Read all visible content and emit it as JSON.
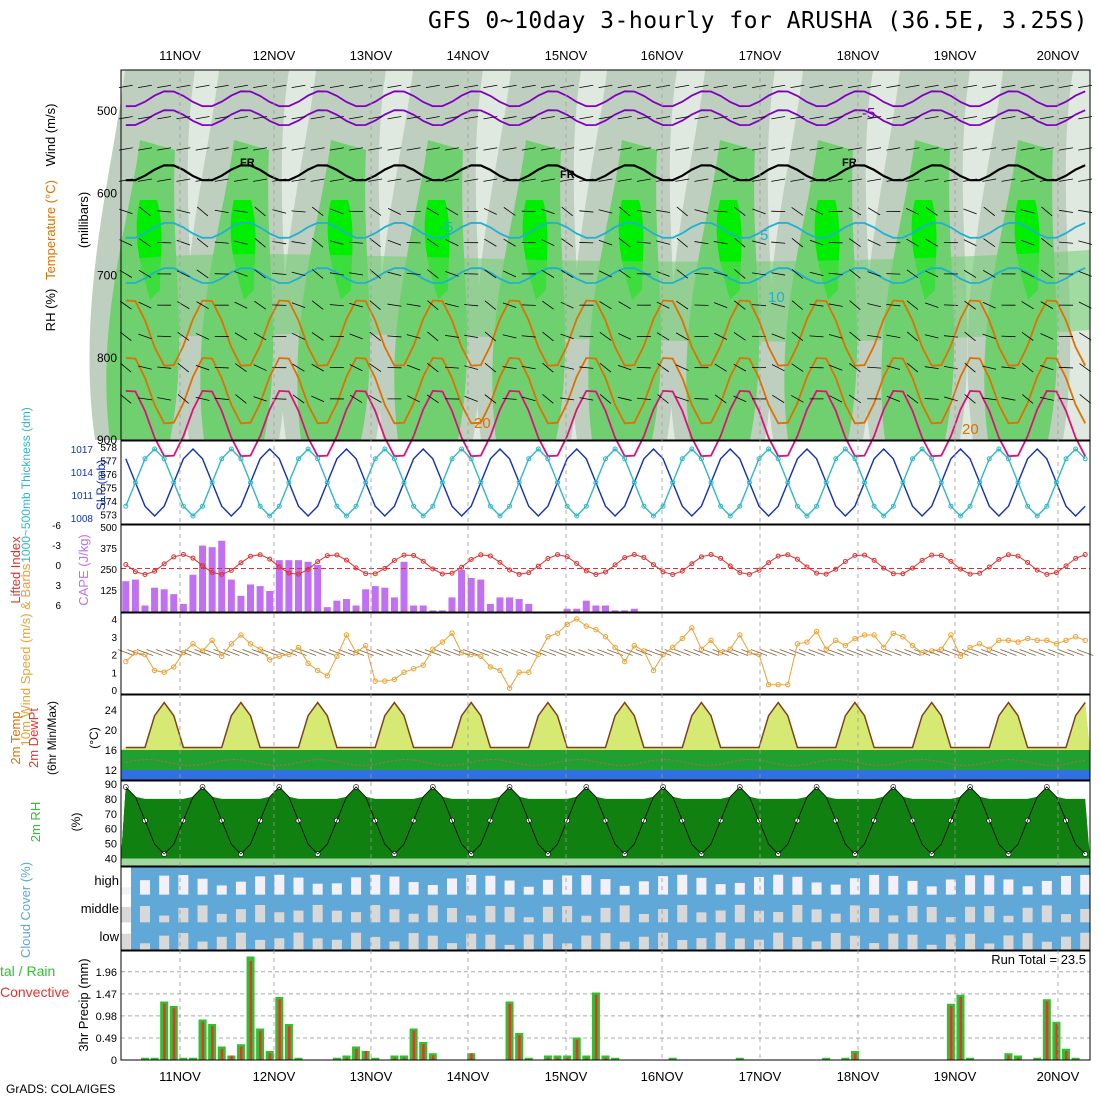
{
  "title": "GFS 0~10day 3-hourly for ARUSHA (36.5E, 3.25S)",
  "credit": "GrADS: COLA/IGES",
  "colors": {
    "rh_low": "#dfe9df",
    "rh_mid": "#bfcfbf",
    "rh_green": "#70d070",
    "rh_bright": "#00ee00",
    "temp_purple": "#8000c0",
    "temp_orange": "#e07000",
    "temp_pink": "#e0107a",
    "temp_cyan": "#20b0d0",
    "slp_blue": "#1030c0",
    "thick_cyan": "#30b8c8",
    "cape_bar": "#c070f0",
    "li_line": "#e03030",
    "wind_orange": "#f0a030",
    "cloud_blue": "#60a8d8",
    "precip_green": "#30c030",
    "precip_red": "#f03030"
  },
  "chart_data": [
    {
      "panel": "upper-air",
      "type": "heatmap",
      "ylabel": "(millibars)",
      "legend_labels": [
        "RH (%)",
        "Temperature (°C)",
        "Wind (m/s)"
      ],
      "y_ticks": [
        500,
        600,
        700,
        800,
        900
      ],
      "ylim": [
        900,
        450
      ],
      "x_tick_labels": [
        "11NOV",
        "12NOV",
        "13NOV",
        "14NOV",
        "15NOV",
        "16NOV",
        "17NOV",
        "18NOV",
        "19NOV",
        "20NOV"
      ],
      "freezing_label": "FR",
      "contour_labels": [
        "-5",
        "5",
        "10",
        "20"
      ],
      "isotherms_hPa": [
        {
          "label": "-5",
          "level": 485,
          "color": "temp_purple"
        },
        {
          "label": "-5",
          "level": 508,
          "color": "temp_purple"
        },
        {
          "label": "FR",
          "level": 575,
          "color": "#000000"
        },
        {
          "label": "5",
          "level": 645,
          "color": "temp_cyan"
        },
        {
          "label": "10",
          "level": 700,
          "color": "temp_cyan"
        },
        {
          "label": "15",
          "level": 770,
          "color": "temp_orange"
        },
        {
          "label": "20",
          "level": 840,
          "color": "temp_orange"
        },
        {
          "label": "25",
          "level": 880,
          "color": "temp_pink"
        }
      ]
    },
    {
      "panel": "slp-thickness",
      "type": "line",
      "ylabel_left": "1000~500mb Thickness (dm)",
      "ylabel_right": "SLP (mb)",
      "left_ticks": [
        "578",
        "577",
        "576",
        "575",
        "574",
        "573"
      ],
      "right_ticks": [
        "1017",
        "1014",
        "1011",
        "1008"
      ],
      "series": [
        {
          "name": "SLP (mb)",
          "color": "slp_blue",
          "period": 8,
          "min": 1008.5,
          "max": 1016.8,
          "phase": 3
        },
        {
          "name": "Thickness (dm)",
          "color": "thick_cyan",
          "period": 8,
          "min": 573.3,
          "max": 577.6,
          "phase": 7
        }
      ]
    },
    {
      "panel": "cape-li",
      "type": "bar",
      "ylabel_left": "Lifted Index",
      "ylabel_right": "CAPE (J/kg)",
      "left_ticks": [
        "-6",
        "-3",
        "0",
        "3",
        "6"
      ],
      "right_ticks": [
        "500",
        "375",
        "250",
        "125"
      ],
      "cape": [
        190,
        200,
        40,
        150,
        140,
        110,
        50,
        230,
        410,
        400,
        440,
        200,
        100,
        170,
        160,
        130,
        320,
        320,
        320,
        310,
        290,
        30,
        70,
        80,
        40,
        140,
        160,
        150,
        90,
        310,
        40,
        40,
        10,
        10,
        90,
        260,
        210,
        200,
        50,
        90,
        90,
        80,
        50,
        0,
        0,
        0,
        20,
        20,
        70,
        40,
        40,
        10,
        10,
        20,
        0,
        0,
        0,
        0,
        0,
        0,
        0,
        0,
        0,
        0,
        0,
        0,
        0,
        0,
        0,
        0,
        0,
        0,
        0,
        0,
        0,
        0,
        0,
        0,
        0,
        0,
        0,
        0,
        0,
        0,
        0,
        0,
        0,
        0,
        0,
        0,
        0,
        0,
        0,
        0,
        0,
        0,
        0,
        0,
        0,
        0,
        0
      ],
      "li_mean": 1
    },
    {
      "panel": "10m-wind",
      "type": "line",
      "ylabel": "10m Wind Speed (m/s) & Barbs",
      "y_ticks": [
        "0",
        "1",
        "2",
        "3",
        "4"
      ],
      "ylim": [
        0,
        4
      ],
      "values": [
        1.6,
        2.1,
        2.0,
        1.1,
        1.0,
        1.3,
        2.1,
        2.6,
        2.2,
        2.8,
        1.9,
        2.6,
        3.1,
        2.6,
        2.3,
        1.7,
        1.9,
        2.0,
        2.4,
        1.5,
        1.1,
        0.8,
        1.9,
        3.1,
        2.1,
        2.5,
        0.5,
        0.5,
        0.6,
        1.0,
        1.2,
        1.4,
        2.3,
        2.7,
        3.2,
        2.1,
        2.0,
        1.9,
        1.3,
        1.1,
        0.1,
        1.0,
        1.0,
        2.0,
        3.0,
        3.2,
        3.7,
        4.0,
        3.6,
        3.4,
        3.0,
        2.4,
        1.6,
        2.5,
        2.2,
        1.1,
        2.0,
        2.4,
        2.9,
        3.5,
        2.3,
        2.8,
        2.1,
        2.3,
        3.1,
        2.1,
        2.0,
        0.3,
        0.3,
        0.3,
        2.6,
        2.7,
        3.3,
        2.3,
        2.8,
        2.5,
        2.9,
        3.1,
        3.1,
        2.4,
        3.2,
        3.0,
        2.5,
        2.1,
        2.2,
        2.3,
        3.1,
        1.9,
        2.4,
        2.6,
        2.3,
        2.8,
        2.8,
        2.7,
        2.9,
        2.8,
        2.8,
        2.6,
        2.8,
        3.0,
        2.8
      ]
    },
    {
      "panel": "2m-temp",
      "type": "area",
      "ylabel": "2m Temp 2m DewPt (6hr Min/Max) (°C)",
      "y_ticks": [
        "24",
        "20",
        "16",
        "12"
      ],
      "ylim": [
        10,
        27
      ],
      "temp_min": 16.5,
      "temp_max": 25.5,
      "dew_mean": 13.5
    },
    {
      "panel": "2m-rh",
      "type": "area",
      "ylabel": "2m RH (%)",
      "y_ticks": [
        "90",
        "80",
        "70",
        "60",
        "50",
        "40"
      ],
      "ylim": [
        35,
        92
      ],
      "rh_min": 43,
      "rh_max": 88
    },
    {
      "panel": "cloud-cover",
      "type": "heatmap",
      "ylabel": "Cloud Cover (%)",
      "layer_labels": [
        "high",
        "middle",
        "low"
      ]
    },
    {
      "panel": "precip",
      "type": "bar",
      "ylabel": "3hr Precip (mm)",
      "legend_labels": [
        "Total",
        "Rain",
        "Convective"
      ],
      "y_ticks": [
        "1.96",
        "1.47",
        "0.98",
        "0.49",
        "0"
      ],
      "ylim": [
        0,
        2.2
      ],
      "run_total_label": "Run Total = 23.5",
      "total": [
        0,
        0,
        0.05,
        0.05,
        1.3,
        1.2,
        0.05,
        0.05,
        0.9,
        0.8,
        0.3,
        0.1,
        0.35,
        2.3,
        0.7,
        0.2,
        1.4,
        0.8,
        0.05,
        0,
        0,
        0,
        0.05,
        0.1,
        0.3,
        0.2,
        0.05,
        0,
        0.1,
        0.1,
        0.7,
        0.4,
        0.15,
        0,
        0,
        0,
        0.15,
        0,
        0,
        0,
        1.3,
        0.6,
        0.05,
        0,
        0.1,
        0.1,
        0.1,
        0.5,
        0.1,
        1.5,
        0.1,
        0.05,
        0,
        0,
        0,
        0,
        0,
        0.05,
        0,
        0,
        0,
        0,
        0,
        0,
        0.05,
        0,
        0,
        0,
        0,
        0,
        0,
        0,
        0,
        0.05,
        0,
        0.05,
        0.2,
        0,
        0,
        0,
        0,
        0,
        0,
        0,
        0,
        0,
        1.25,
        1.45,
        0.05,
        0,
        0,
        0,
        0.15,
        0.1,
        0,
        0.05,
        1.35,
        0.85,
        0.25,
        0.05,
        0,
        0,
        0.05,
        0.05,
        0,
        0,
        0.05
      ],
      "conv": [
        0,
        0,
        0,
        0,
        1.25,
        1.15,
        0,
        0,
        0.85,
        0.75,
        0.25,
        0.1,
        0.3,
        2.2,
        0.65,
        0.15,
        1.35,
        0.75,
        0,
        0,
        0,
        0,
        0,
        0.05,
        0.25,
        0.2,
        0,
        0,
        0.05,
        0.05,
        0.65,
        0.35,
        0.1,
        0,
        0,
        0,
        0.15,
        0,
        0,
        0,
        1.25,
        0.55,
        0,
        0,
        0.05,
        0.05,
        0.05,
        0.45,
        0.05,
        1.45,
        0.05,
        0,
        0,
        0,
        0,
        0,
        0,
        0,
        0,
        0,
        0,
        0,
        0,
        0,
        0,
        0,
        0,
        0,
        0,
        0,
        0,
        0,
        0,
        0,
        0,
        0,
        0.15,
        0,
        0,
        0,
        0,
        0,
        0,
        0,
        0,
        0,
        1.2,
        1.4,
        0,
        0,
        0,
        0,
        0.1,
        0.05,
        0,
        0,
        1.3,
        0.8,
        0.2,
        0,
        0,
        0,
        0,
        0,
        0,
        0,
        0
      ]
    }
  ]
}
